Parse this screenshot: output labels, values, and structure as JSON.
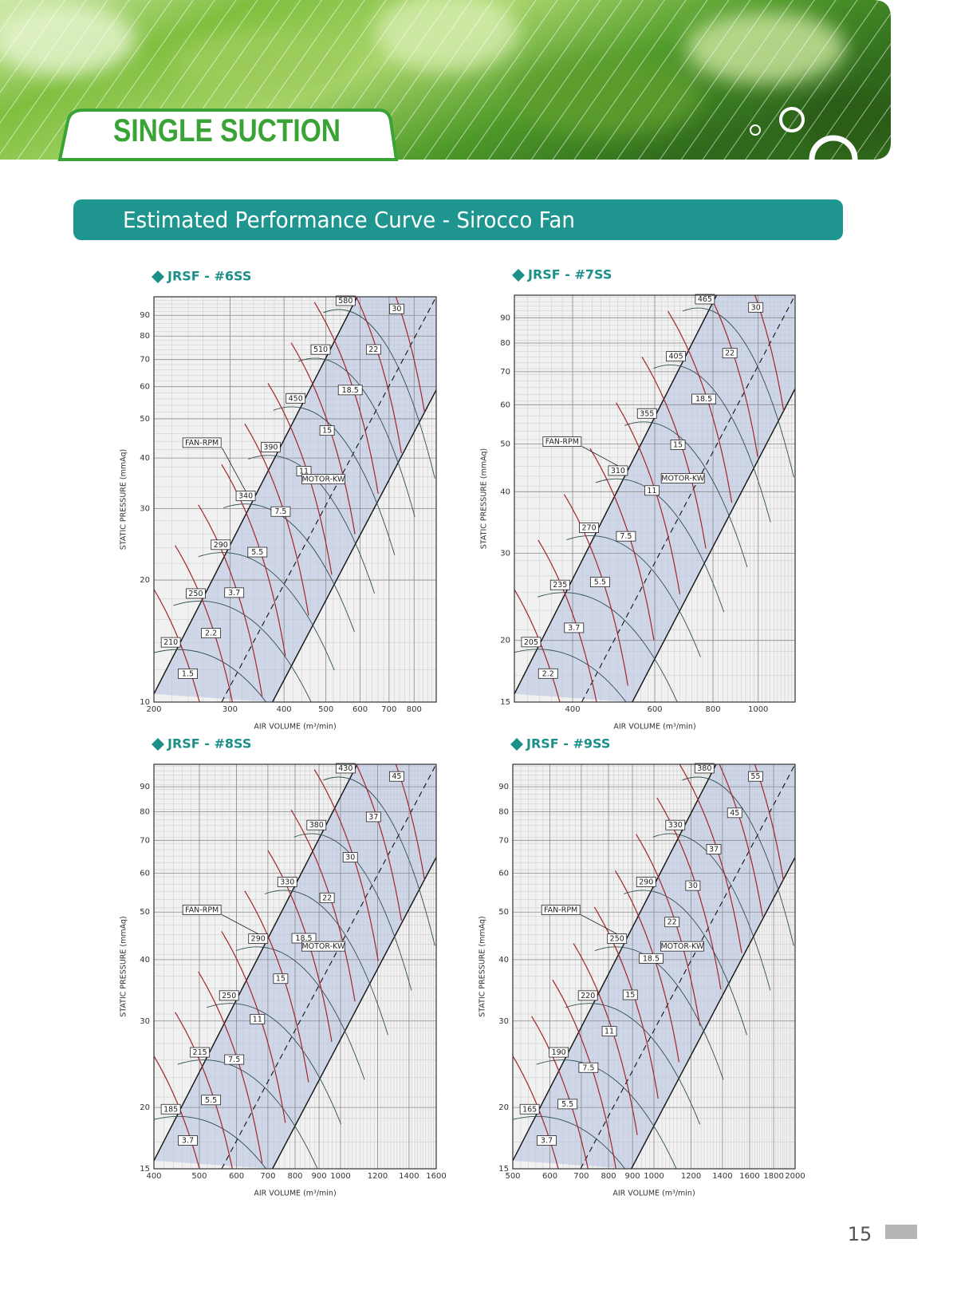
{
  "header": {
    "title": "SINGLE SUCTION"
  },
  "section": {
    "title": "Estimated Performance Curve - Sirocco Fan"
  },
  "chart_data": [
    {
      "type": "performance",
      "title": "JRSF - #6SS",
      "x_label": "AIR VOLUME (m³/min)",
      "y_label": "STATIC PRESSURE (mmAq)",
      "log_scale": true,
      "grid": true,
      "xlim": [
        200,
        900
      ],
      "xticks": [
        200,
        300,
        400,
        500,
        600,
        700,
        800
      ],
      "ylim": [
        10,
        100
      ],
      "yticks": [
        10,
        20,
        30,
        40,
        50,
        60,
        70,
        80,
        90
      ],
      "fan_rpm_label": "FAN-RPM",
      "motor_kw_label": "MOTOR-KW",
      "fan_rpm": [
        210,
        250,
        290,
        340,
        390,
        450,
        510,
        580
      ],
      "motor_kw": [
        1.5,
        2.2,
        3.7,
        5.5,
        7.5,
        11,
        15,
        18.5,
        22,
        30
      ]
    },
    {
      "type": "performance",
      "title": "JRSF - #7SS",
      "x_label": "AIR VOLUME (m³/min)",
      "y_label": "STATIC PRESSURE (mmAq)",
      "log_scale": true,
      "grid": true,
      "xlim": [
        300,
        1200
      ],
      "xticks": [
        400,
        600,
        800,
        1000
      ],
      "ylim": [
        15,
        100
      ],
      "yticks": [
        15,
        20,
        30,
        40,
        50,
        60,
        70,
        80,
        90
      ],
      "fan_rpm_label": "FAN-RPM",
      "motor_kw_label": "MOTOR-KW",
      "fan_rpm": [
        205,
        235,
        270,
        310,
        355,
        405,
        465
      ],
      "motor_kw": [
        2.2,
        3.7,
        5.5,
        7.5,
        11,
        15,
        18.5,
        22,
        30
      ]
    },
    {
      "type": "performance",
      "title": "JRSF - #8SS",
      "x_label": "AIR VOLUME (m³/min)",
      "y_label": "STATIC PRESSURE (mmAq)",
      "log_scale": true,
      "grid": true,
      "xlim": [
        400,
        1600
      ],
      "xticks": [
        400,
        500,
        600,
        700,
        800,
        900,
        1000,
        1200,
        1400,
        1600
      ],
      "ylim": [
        15,
        100
      ],
      "yticks": [
        15,
        20,
        30,
        40,
        50,
        60,
        70,
        80,
        90
      ],
      "fan_rpm_label": "FAN-RPM",
      "motor_kw_label": "MOTOR-KW",
      "fan_rpm": [
        185,
        215,
        250,
        290,
        330,
        380,
        430
      ],
      "motor_kw": [
        3.7,
        5.5,
        7.5,
        11,
        15,
        18.5,
        22,
        30,
        37,
        45
      ]
    },
    {
      "type": "performance",
      "title": "JRSF - #9SS",
      "x_label": "AIR VOLUME (m³/min)",
      "y_label": "STATIC PRESSURE (mmAq)",
      "log_scale": true,
      "grid": true,
      "xlim": [
        500,
        2000
      ],
      "xticks": [
        500,
        600,
        700,
        800,
        900,
        1000,
        1200,
        1400,
        1600,
        1800,
        2000
      ],
      "ylim": [
        15,
        100
      ],
      "yticks": [
        15,
        20,
        30,
        40,
        50,
        60,
        70,
        80,
        90
      ],
      "fan_rpm_label": "FAN-RPM",
      "motor_kw_label": "MOTOR-KW",
      "fan_rpm": [
        165,
        190,
        220,
        250,
        290,
        330,
        380
      ],
      "motor_kw": [
        3.7,
        5.5,
        7.5,
        11,
        15,
        18.5,
        22,
        30,
        37,
        45,
        55
      ]
    }
  ],
  "page_number": 15
}
